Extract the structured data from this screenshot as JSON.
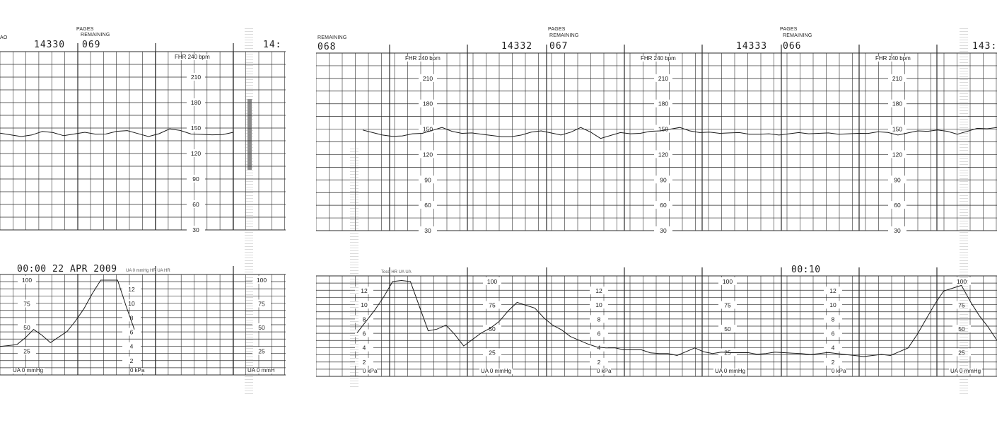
{
  "header": {
    "left": {
      "pages_label": "PAGES",
      "remaining_label": "REMAINING",
      "page_number": "14330",
      "remaining": "069",
      "partial_next": "14:",
      "cut_left": "AO"
    },
    "right": {
      "cut_left_label": "REMAINING",
      "cut_left_value": "068",
      "sections": [
        {
          "page_number": "14332",
          "pages_label": "PAGES",
          "remaining_label": "REMAINING",
          "remaining": "067"
        },
        {
          "page_number": "14333",
          "pages_label": "PAGES",
          "remaining_label": "REMAINING",
          "remaining": "066"
        }
      ],
      "partial_next": "143:"
    }
  },
  "fhr_panel": {
    "title": "FHR 240 bpm",
    "tick_labels": [
      "210",
      "180",
      "150",
      "120",
      "90",
      "60",
      "30"
    ]
  },
  "ua_panel": {
    "mmhg_label": "UA 0 mmHg",
    "mmhg_label_cut": "UA 0 mmH",
    "kpa_label": "0 kPa",
    "mmhg_ticks": [
      "100",
      "75",
      "50",
      "25"
    ],
    "kpa_ticks": [
      "12",
      "10",
      "8",
      "6",
      "4",
      "2"
    ]
  },
  "annotations": {
    "timestamp_left": "00:00 22 APR 2009",
    "timestamp_right": "00:10",
    "small_left": "UA 0 mmHg  HR  UA  HR",
    "small_right": "Toco  HR  UA  UA"
  },
  "colors": {
    "grid": "#2b2b2b",
    "trace": "#1a1a1a",
    "paper": "#ffffff"
  },
  "chart_data": [
    {
      "type": "line",
      "name": "FHR",
      "ylabel": "FHR 240 bpm",
      "ylim": [
        30,
        240
      ],
      "yticks": [
        30,
        60,
        90,
        120,
        150,
        180,
        210
      ],
      "x_units": "minutes",
      "x": [
        0,
        0.5,
        1,
        1.5,
        2,
        2.5,
        3,
        3.5,
        4,
        4.5,
        5,
        5.5,
        6,
        6.5,
        7,
        7.5,
        8,
        8.5,
        9,
        9.5,
        10,
        10.5,
        11,
        11.5,
        12,
        12.5,
        13,
        13.5,
        14,
        14.5,
        15,
        15.5,
        16,
        16.5,
        17,
        17.5,
        18,
        18.5,
        19,
        19.5,
        20
      ],
      "values": [
        144,
        140,
        146,
        141,
        145,
        143,
        147,
        140,
        149,
        143,
        142,
        145,
        152,
        145,
        144,
        141,
        143,
        148,
        143,
        152,
        139,
        146,
        145,
        148,
        152,
        146,
        145,
        146,
        144,
        143,
        146,
        145,
        144,
        145,
        147,
        143,
        148,
        149,
        144,
        151,
        152
      ]
    },
    {
      "type": "line",
      "name": "UA",
      "ylabel": "UA 0 mmHg",
      "ylim": [
        0,
        100
      ],
      "yticks": [
        25,
        50,
        75,
        100
      ],
      "x_units": "minutes",
      "x": [
        0,
        0.5,
        1,
        1.5,
        2,
        2.5,
        3,
        3.5,
        4,
        4.5,
        5,
        5.5,
        6,
        6.5,
        7,
        7.5,
        8,
        8.5,
        9,
        9.5,
        10,
        10.5,
        11,
        11.5,
        12,
        12.5,
        13,
        13.5,
        14,
        14.5,
        15,
        15.5,
        16,
        16.5,
        17,
        17.5,
        18,
        18.5,
        19,
        19.5,
        20
      ],
      "values": [
        30,
        32,
        48,
        34,
        46,
        70,
        100,
        100,
        48,
        54,
        32,
        46,
        58,
        78,
        72,
        54,
        42,
        34,
        30,
        28,
        28,
        24,
        22,
        30,
        24,
        25,
        25,
        24,
        25,
        24,
        24,
        24,
        22,
        22,
        22,
        30,
        60,
        90,
        96,
        64,
        38
      ]
    }
  ]
}
